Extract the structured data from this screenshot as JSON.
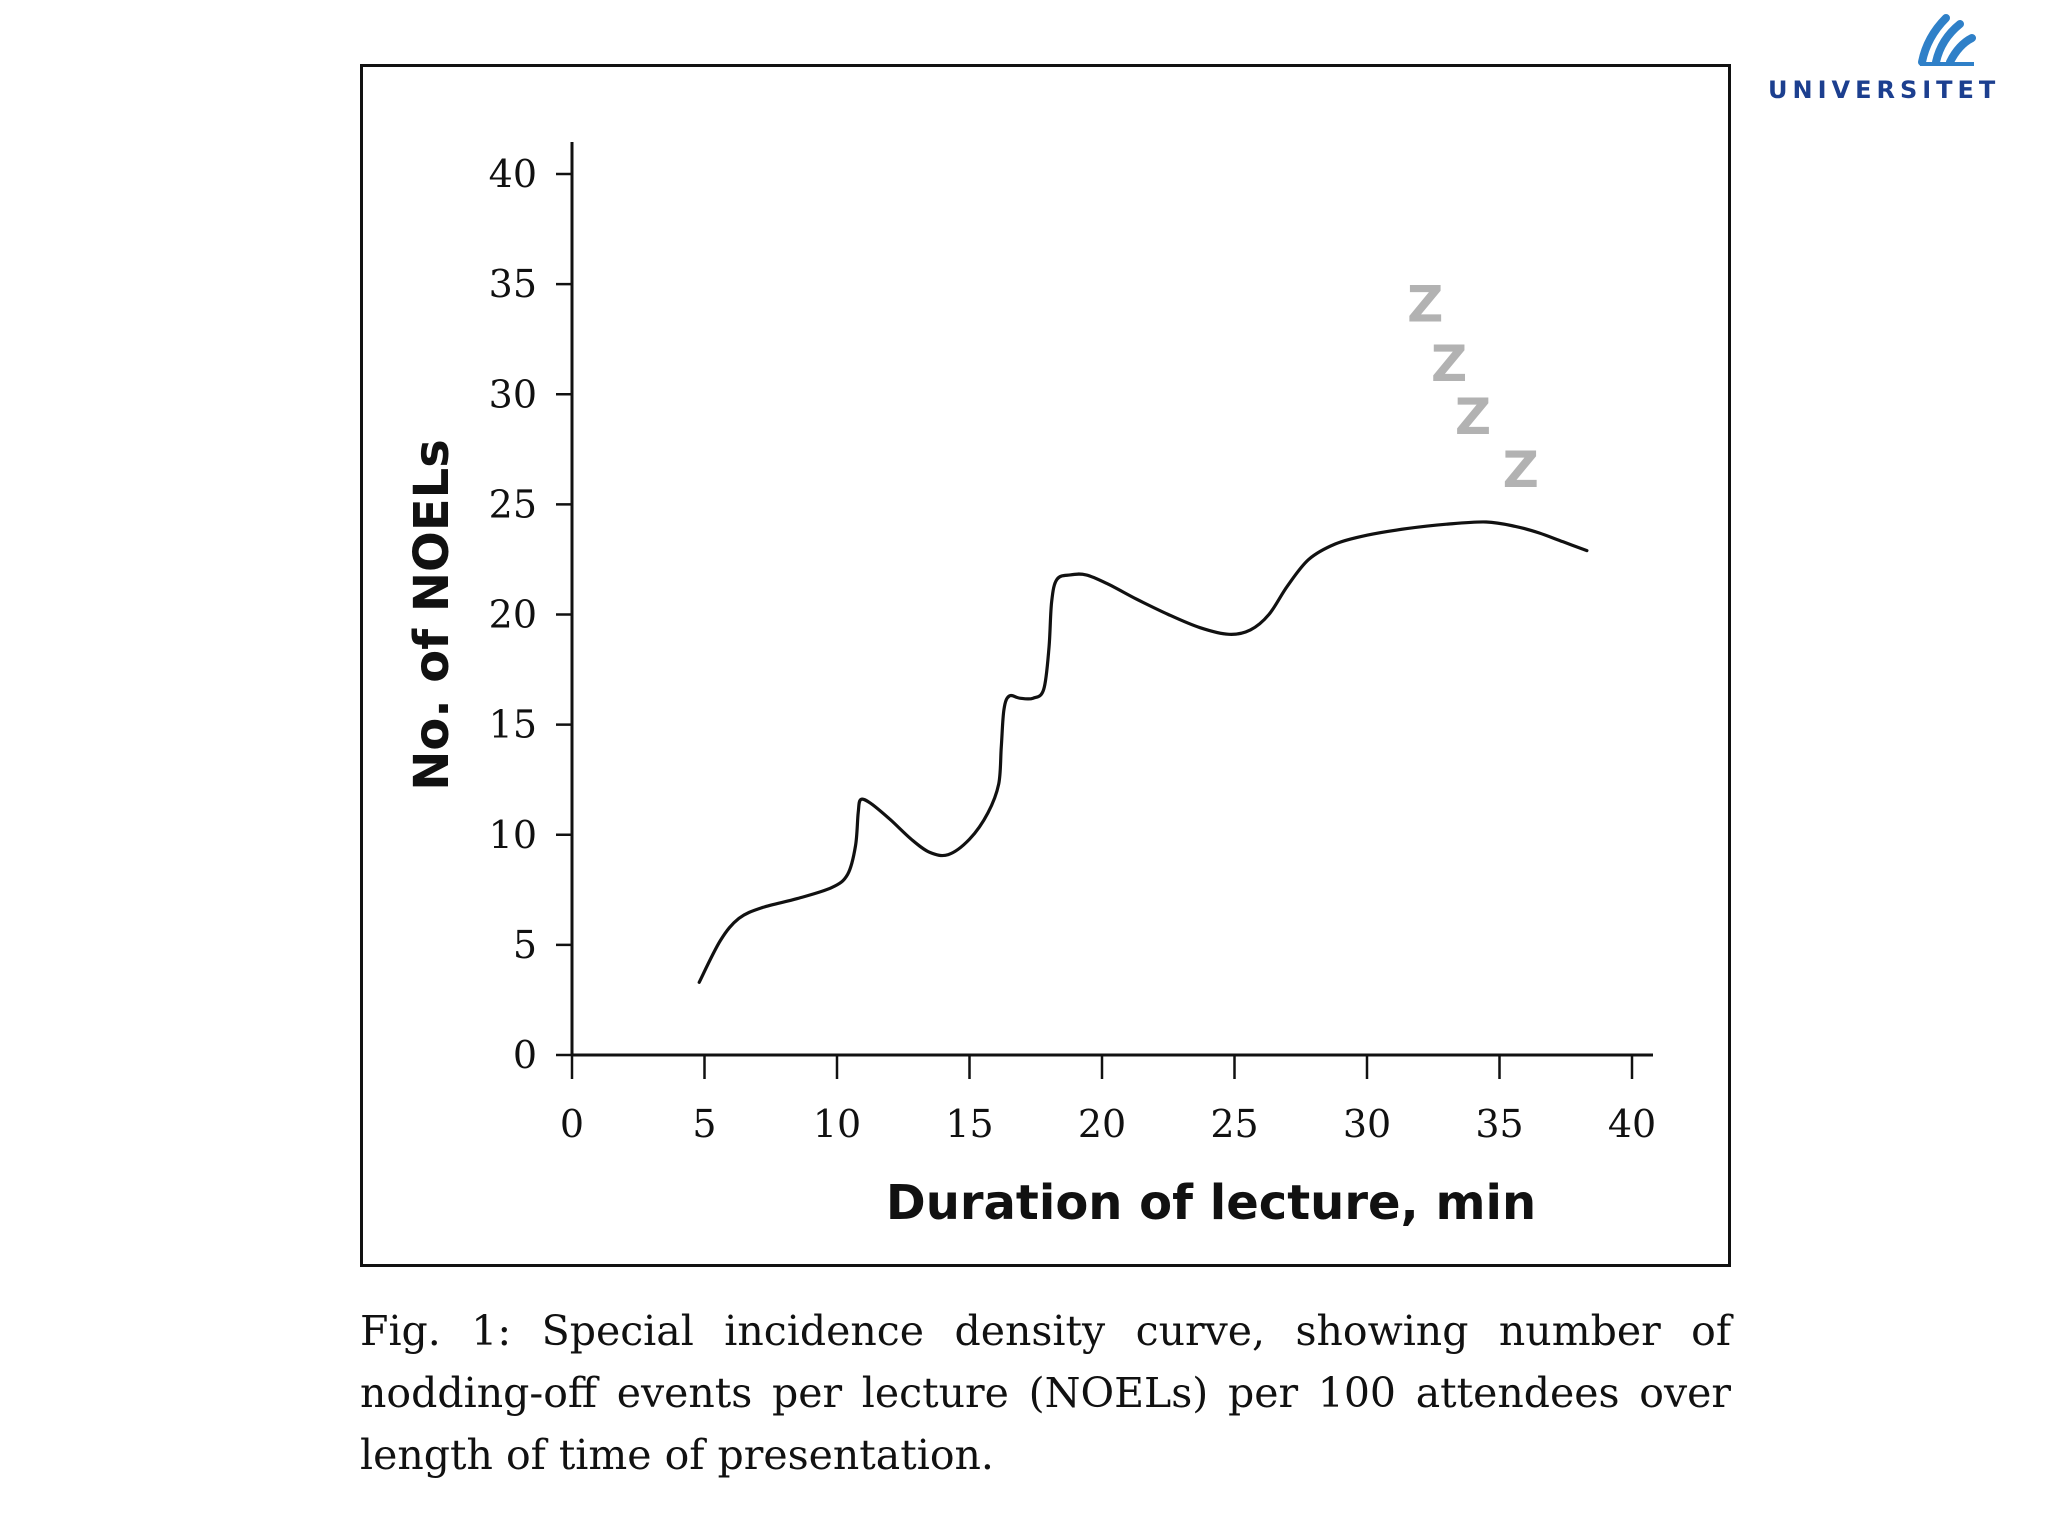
{
  "logo": {
    "text": "UNIVERSITET",
    "brand_color": "#1c3f8f",
    "icon": "university-waves-icon"
  },
  "chart_data": {
    "type": "line",
    "title": "",
    "xlabel": "Duration of lecture, min",
    "ylabel": "No. of NOELs",
    "xlim": [
      0,
      40
    ],
    "ylim": [
      0,
      40
    ],
    "xticks": [
      "0",
      "5",
      "10",
      "15",
      "20",
      "25",
      "30",
      "35",
      "40"
    ],
    "yticks": [
      "0",
      "5",
      "10",
      "15",
      "20",
      "25",
      "30",
      "35",
      "40"
    ],
    "grid": false,
    "series": [
      {
        "name": "NOELs",
        "x": [
          4.8,
          5.6,
          6.3,
          7.2,
          8.5,
          9.8,
          10.4,
          10.7,
          10.8,
          10.9,
          11.3,
          12.0,
          12.8,
          13.5,
          14.2,
          15.0,
          15.7,
          16.1,
          16.2,
          16.3,
          16.5,
          16.9,
          17.4,
          17.8,
          18.0,
          18.1,
          18.3,
          18.8,
          19.4,
          20.2,
          21.3,
          22.5,
          23.7,
          24.8,
          25.6,
          26.3,
          27.0,
          27.8,
          28.8,
          30.0,
          31.5,
          33.0,
          34.5,
          35.6,
          36.5,
          37.4,
          38.3
        ],
        "values": [
          3.3,
          5.2,
          6.2,
          6.7,
          7.1,
          7.6,
          8.2,
          9.5,
          11.0,
          11.6,
          11.4,
          10.7,
          9.8,
          9.2,
          9.1,
          9.8,
          11.0,
          12.3,
          14.0,
          15.7,
          16.3,
          16.2,
          16.2,
          16.6,
          18.5,
          20.6,
          21.6,
          21.8,
          21.8,
          21.4,
          20.7,
          20.0,
          19.4,
          19.1,
          19.3,
          20.0,
          21.3,
          22.5,
          23.2,
          23.6,
          23.9,
          24.1,
          24.2,
          24.0,
          23.7,
          23.3,
          22.9
        ]
      }
    ],
    "annotations": [
      "Z",
      "Z",
      "Z",
      "Z"
    ]
  },
  "caption": "Fig. 1: Special incidence density curve, showing number of nodding-off events per lecture (NOELs) per 100 attendees over length of time of presentation."
}
